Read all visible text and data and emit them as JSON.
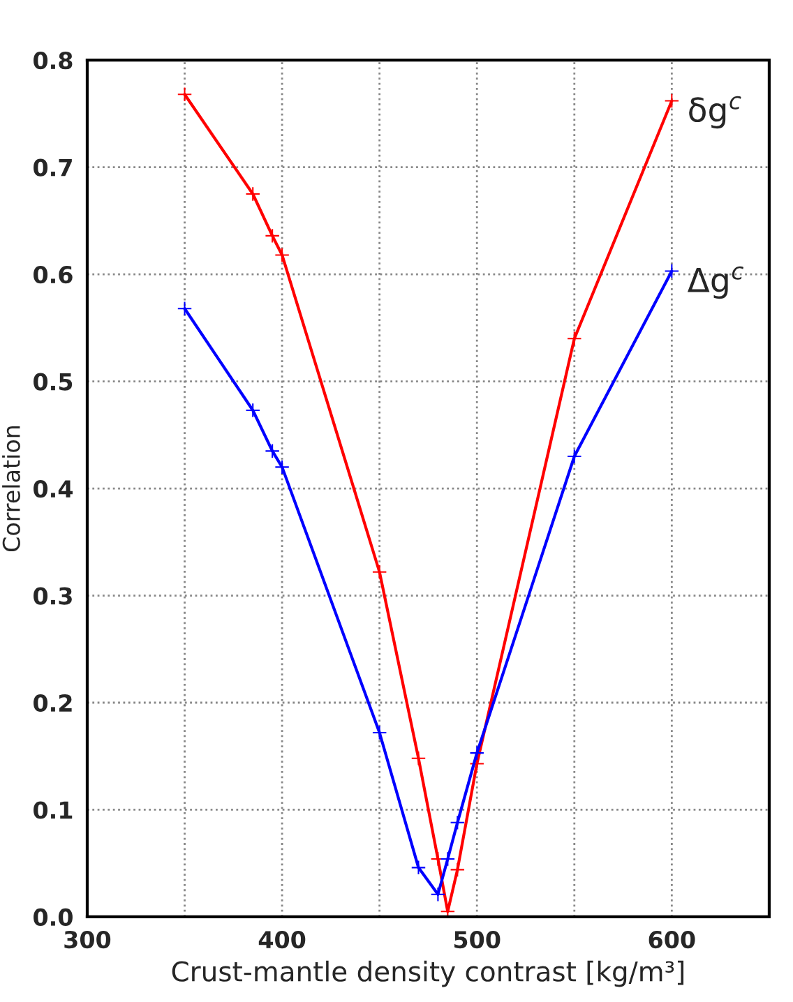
{
  "chart_data": {
    "type": "line",
    "xlabel": "Crust-mantle density contrast [kg/m³]",
    "ylabel": "Correlation",
    "xlim": [
      300,
      650
    ],
    "ylim": [
      0,
      0.8
    ],
    "xticks": [
      300,
      {
        "value": 350,
        "label": null
      },
      400,
      {
        "value": 450,
        "label": null
      },
      500,
      {
        "value": 550,
        "label": null
      },
      600,
      {
        "value": 650,
        "label": null
      }
    ],
    "yticks": [
      {
        "value": 0,
        "label": "0.0"
      },
      0.1,
      0.2,
      0.3,
      0.4,
      0.5,
      0.6,
      0.7,
      0.8
    ],
    "grid": true,
    "marker": "cross",
    "line_style": "solid",
    "legend": false,
    "series": [
      {
        "name": "δg$^{c}$",
        "color": "#ff0000",
        "x": [
          350,
          385,
          395,
          400,
          450,
          470,
          480,
          485,
          490,
          500,
          550,
          600
        ],
        "values": [
          0.768,
          0.675,
          0.636,
          0.618,
          0.322,
          0.148,
          0.054,
          0.005,
          0.044,
          0.143,
          0.54,
          0.762
        ]
      },
      {
        "name": "Δg$^{c}$",
        "color": "#0000ff",
        "x": [
          350,
          385,
          395,
          400,
          450,
          470,
          480,
          485,
          490,
          500,
          550,
          600
        ],
        "values": [
          0.568,
          0.473,
          0.435,
          0.42,
          0.172,
          0.046,
          0.021,
          0.054,
          0.088,
          0.153,
          0.43,
          0.603
        ]
      }
    ]
  }
}
